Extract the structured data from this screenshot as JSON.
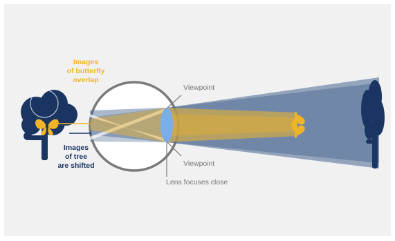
{
  "labels": {
    "butterfly_line1": "Images",
    "butterfly_line2": "of butterfly",
    "butterfly_line3": "overlap",
    "tree_line1": "Images",
    "tree_line2": "of tree",
    "tree_line3": "are shifted",
    "viewpoint_top": "Viewpoint",
    "viewpoint_bottom": "Viewpoint",
    "lens_caption": "Lens focuses close"
  },
  "colors": {
    "background": "#f1f1f2",
    "tree": "#1b3563",
    "butterfly": "#f0b429",
    "lens": "#7aaee8",
    "eye_outline": "#7a7a7a",
    "beam_blue": "#46648f",
    "beam_gold": "#f0b429",
    "label_grey": "#757575"
  },
  "icons": {
    "near_tree": "tree-icon",
    "far_tree": "tree-icon",
    "near_butterfly": "butterfly-icon",
    "far_butterfly": "butterfly-icon",
    "lens": "lens-icon",
    "eye": "eye-circle-icon"
  }
}
